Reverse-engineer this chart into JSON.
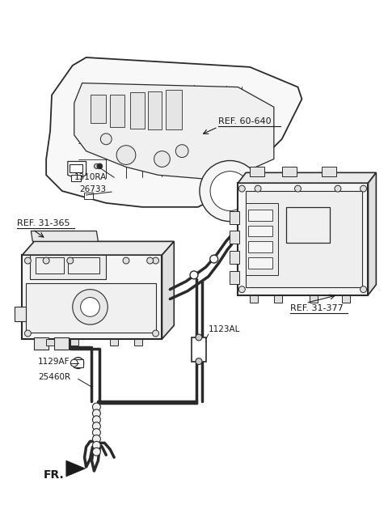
{
  "bg_color": "#ffffff",
  "line_color": "#2a2a2a",
  "text_color": "#1a1a1a",
  "figsize": [
    4.8,
    6.55
  ],
  "dpi": 100,
  "labels": {
    "ref_60_640": "REF. 60-640",
    "ref_31_365": "REF. 31-365",
    "ref_31_377": "REF. 31-377",
    "l1310RA": "1310RA",
    "l26733": "26733",
    "l1123AL": "1123AL",
    "l1129AF": "1129AF",
    "l25460R": "25460R",
    "FR": "FR."
  }
}
